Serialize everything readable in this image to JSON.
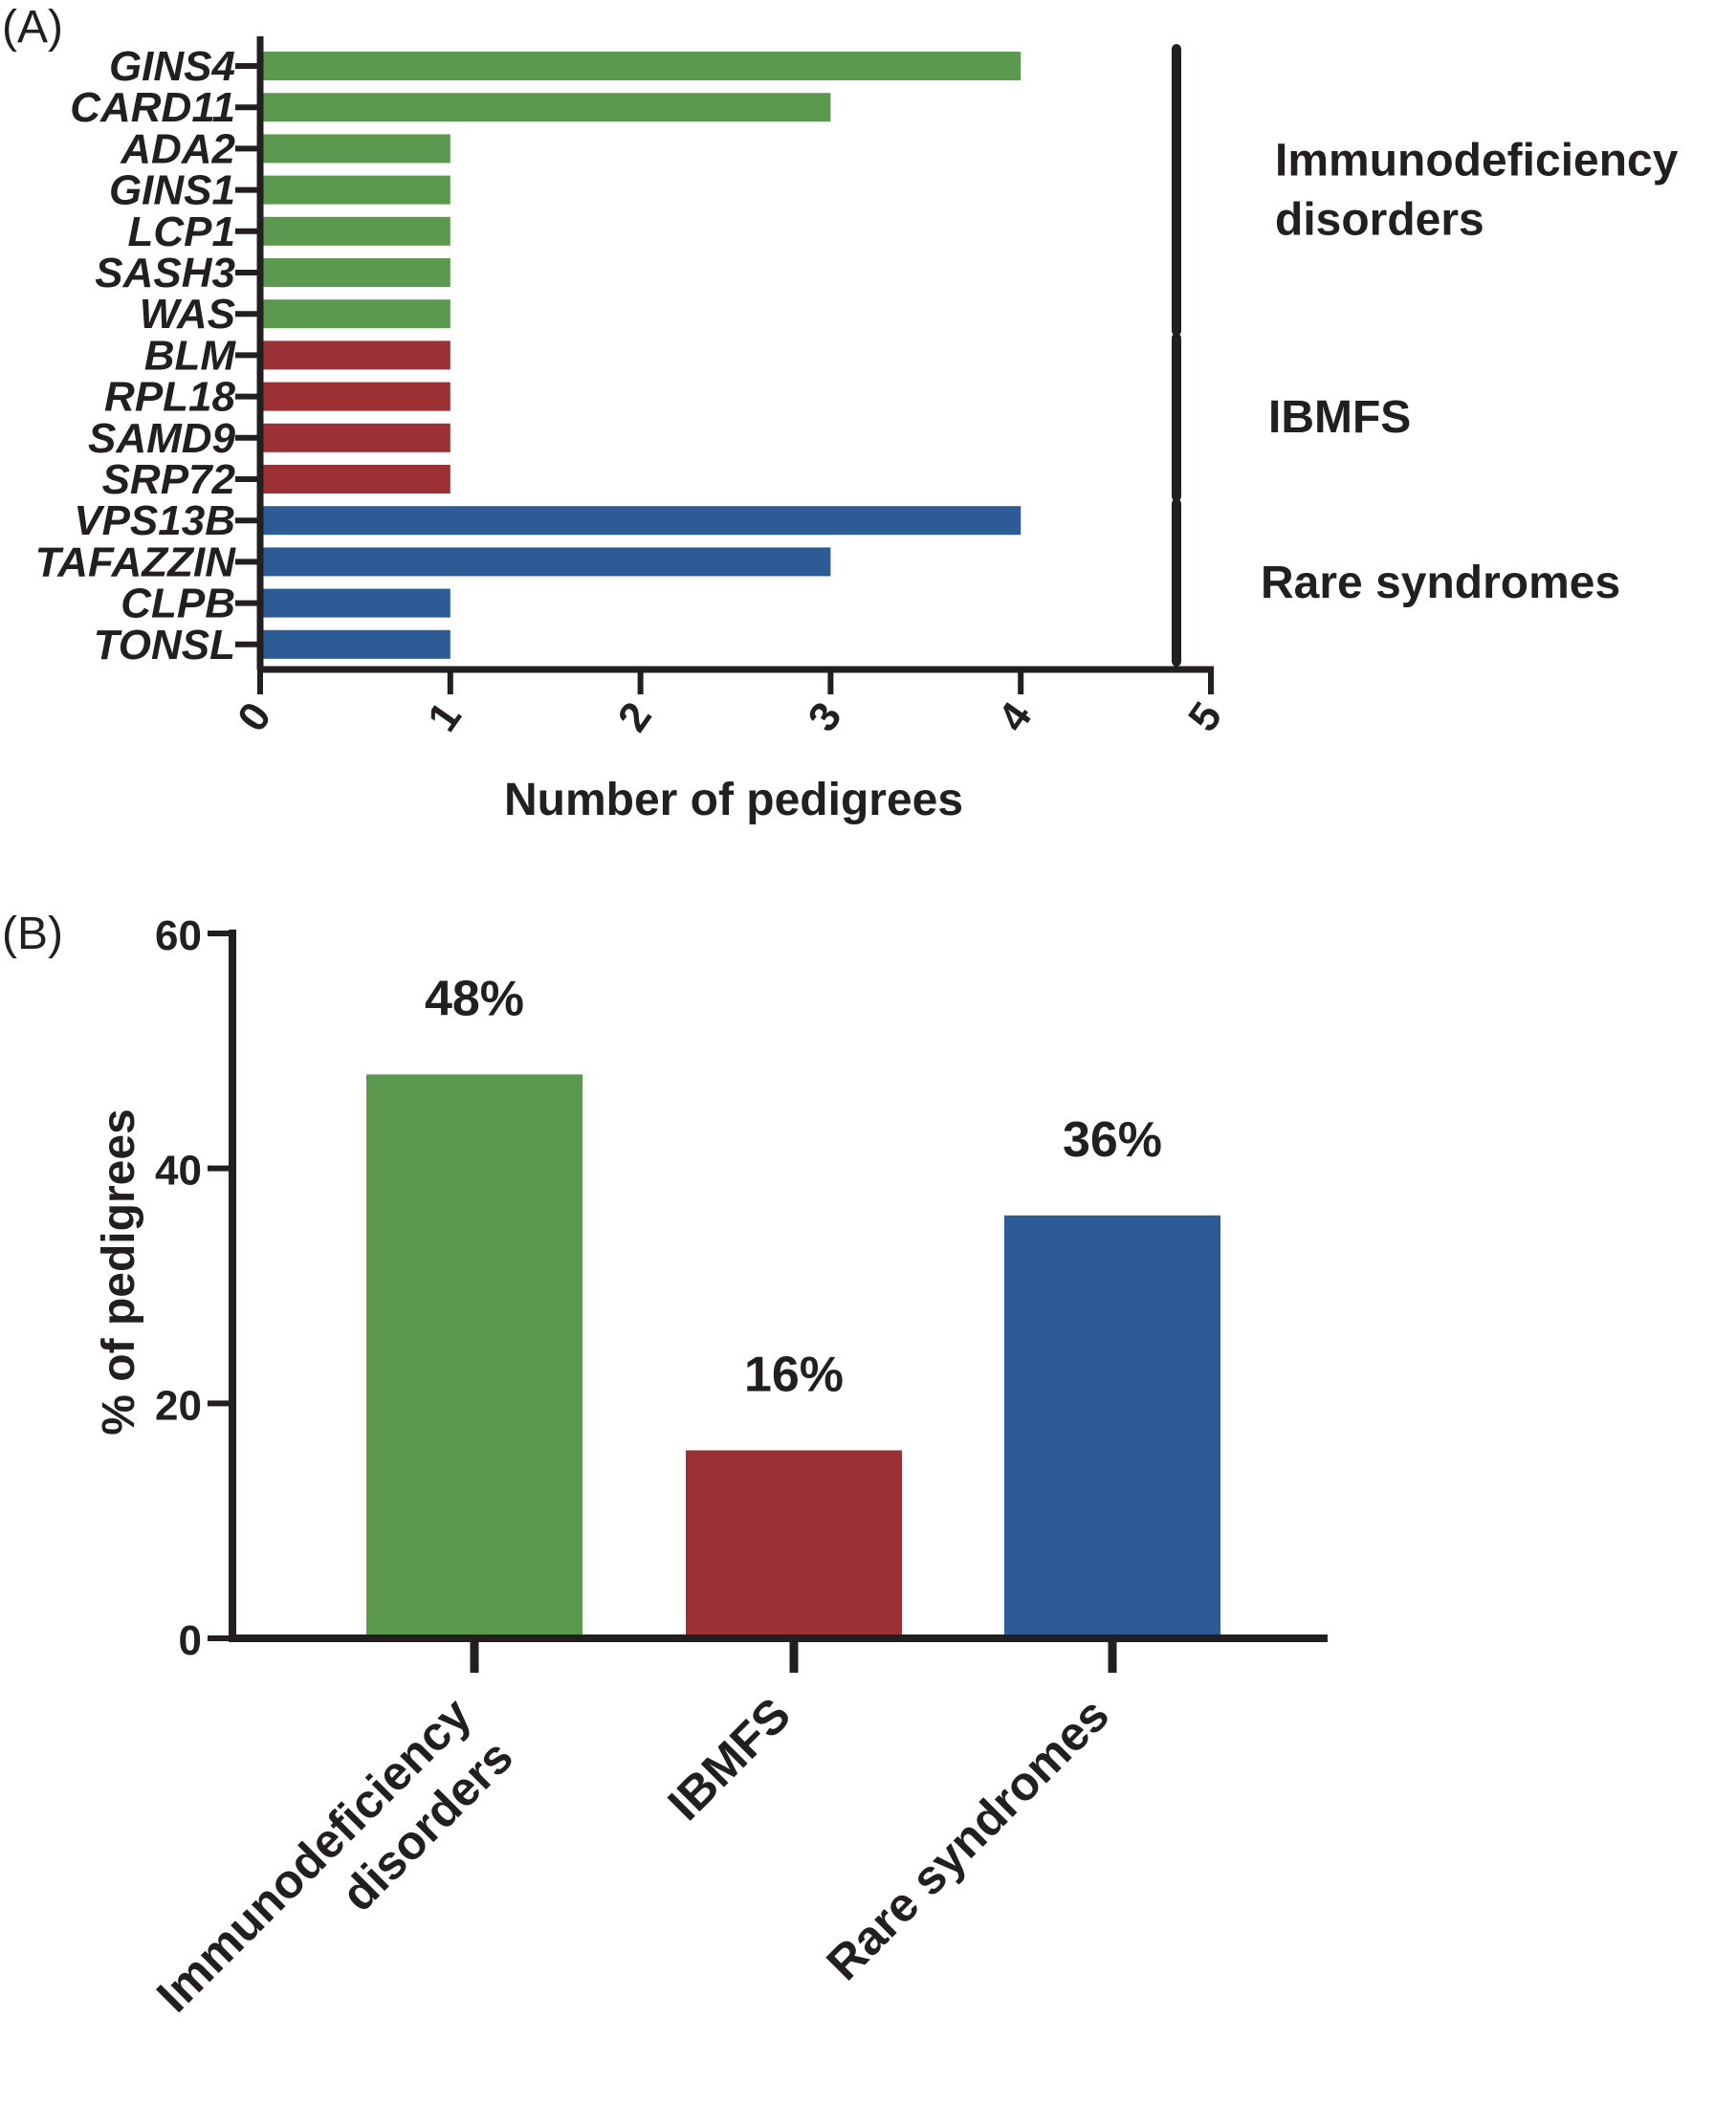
{
  "colors": {
    "immunodeficiency": "#5b9a4e",
    "ibmfs": "#9b3135",
    "rare": "#2c5b96",
    "axis": "#231f20"
  },
  "chart_data": [
    {
      "panel": "(A)",
      "type": "bar",
      "orientation": "horizontal",
      "categories": [
        "GINS4",
        "CARD11",
        "ADA2",
        "GINS1",
        "LCP1",
        "SASH3",
        "WAS",
        "BLM",
        "RPL18",
        "SAMD9",
        "SRP72",
        "VPS13B",
        "TAFAZZIN",
        "CLPB",
        "TONSL"
      ],
      "values": [
        4,
        3,
        1,
        1,
        1,
        1,
        1,
        1,
        1,
        1,
        1,
        4,
        3,
        1,
        1
      ],
      "groups": [
        "immunodeficiency",
        "immunodeficiency",
        "immunodeficiency",
        "immunodeficiency",
        "immunodeficiency",
        "immunodeficiency",
        "immunodeficiency",
        "ibmfs",
        "ibmfs",
        "ibmfs",
        "ibmfs",
        "rare",
        "rare",
        "rare",
        "rare"
      ],
      "xlabel": "Number of pedigrees",
      "xlim": [
        0,
        5
      ],
      "xticks": [
        "0",
        "1",
        "2",
        "3",
        "4",
        "5"
      ],
      "group_brackets": [
        {
          "group": "immunodeficiency",
          "label_lines": [
            "Immunodeficiency",
            "disorders"
          ],
          "from": 0,
          "to": 6
        },
        {
          "group": "ibmfs",
          "label_lines": [
            "IBMFS"
          ],
          "from": 7,
          "to": 10
        },
        {
          "group": "rare",
          "label_lines": [
            "Rare syndromes"
          ],
          "from": 11,
          "to": 14
        }
      ],
      "grid": false
    },
    {
      "panel": "(B)",
      "type": "bar",
      "categories": [
        {
          "lines": [
            "Immunodeficiency",
            "disorders"
          ],
          "group": "immunodeficiency"
        },
        {
          "lines": [
            "IBMFS"
          ],
          "group": "ibmfs"
        },
        {
          "lines": [
            "Rare syndromes"
          ],
          "group": "rare"
        }
      ],
      "values": [
        48,
        16,
        36
      ],
      "data_labels": [
        "48%",
        "16%",
        "36%"
      ],
      "ylabel": "% of pedigrees",
      "ylim": [
        0,
        60
      ],
      "yticks": [
        "0",
        "20",
        "40",
        "60"
      ],
      "grid": false
    }
  ]
}
